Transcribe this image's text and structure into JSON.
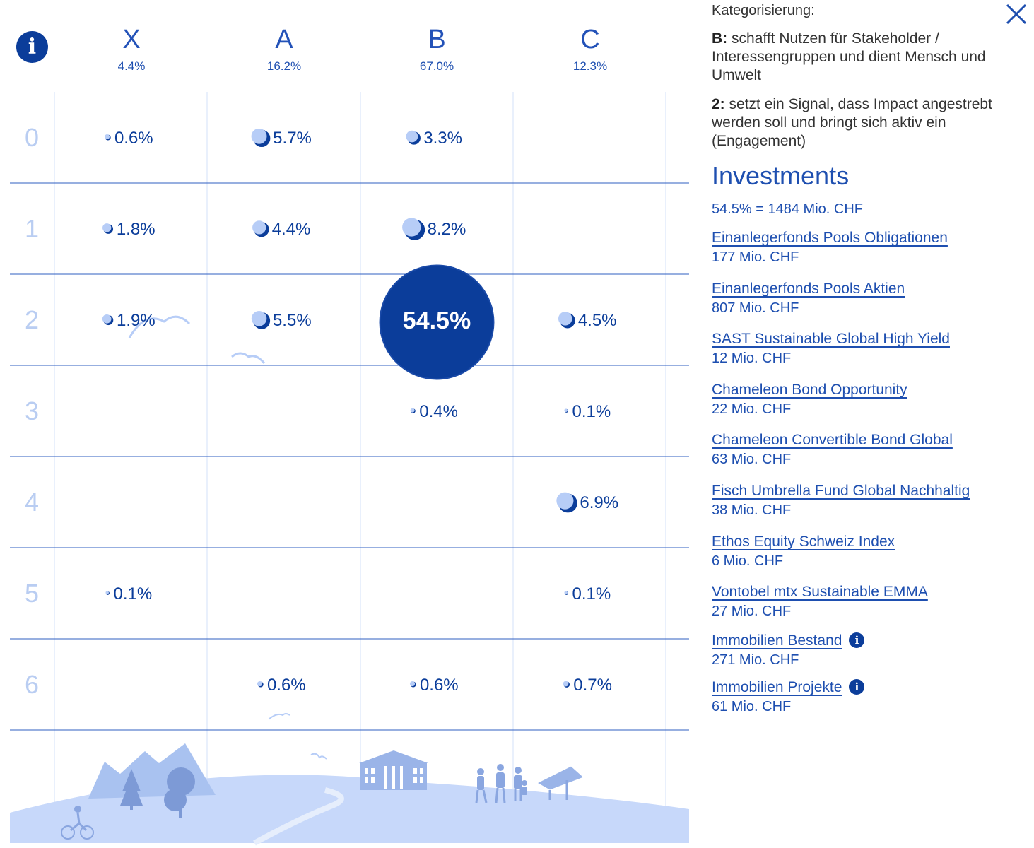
{
  "chart_data": {
    "type": "bubble-matrix",
    "columns": [
      {
        "label": "X",
        "total": "4.4%"
      },
      {
        "label": "A",
        "total": "16.2%"
      },
      {
        "label": "B",
        "total": "67.0%"
      },
      {
        "label": "C",
        "total": "12.3%"
      }
    ],
    "rows": [
      "0",
      "1",
      "2",
      "3",
      "4",
      "5",
      "6"
    ],
    "cells": [
      {
        "row": 0,
        "col": 0,
        "value": 0.6,
        "label": "0.6%"
      },
      {
        "row": 0,
        "col": 1,
        "value": 5.7,
        "label": "5.7%"
      },
      {
        "row": 0,
        "col": 2,
        "value": 3.3,
        "label": "3.3%"
      },
      {
        "row": 1,
        "col": 0,
        "value": 1.8,
        "label": "1.8%"
      },
      {
        "row": 1,
        "col": 1,
        "value": 4.4,
        "label": "4.4%"
      },
      {
        "row": 1,
        "col": 2,
        "value": 8.2,
        "label": "8.2%"
      },
      {
        "row": 2,
        "col": 0,
        "value": 1.9,
        "label": "1.9%"
      },
      {
        "row": 2,
        "col": 1,
        "value": 5.5,
        "label": "5.5%"
      },
      {
        "row": 2,
        "col": 2,
        "value": 54.5,
        "label": "54.5%",
        "selected": true
      },
      {
        "row": 2,
        "col": 3,
        "value": 4.5,
        "label": "4.5%"
      },
      {
        "row": 3,
        "col": 2,
        "value": 0.4,
        "label": "0.4%"
      },
      {
        "row": 3,
        "col": 3,
        "value": 0.1,
        "label": "0.1%"
      },
      {
        "row": 4,
        "col": 3,
        "value": 6.9,
        "label": "6.9%"
      },
      {
        "row": 5,
        "col": 0,
        "value": 0.1,
        "label": "0.1%"
      },
      {
        "row": 5,
        "col": 3,
        "value": 0.1,
        "label": "0.1%"
      },
      {
        "row": 6,
        "col": 1,
        "value": 0.6,
        "label": "0.6%"
      },
      {
        "row": 6,
        "col": 2,
        "value": 0.6,
        "label": "0.6%"
      },
      {
        "row": 6,
        "col": 3,
        "value": 0.7,
        "label": "0.7%"
      }
    ]
  },
  "panel": {
    "title": "Kategorisierung:",
    "desc1_key": "B:",
    "desc1_text": "schafft Nutzen für Stakeholder / Interessengruppen und dient Mensch und Umwelt",
    "desc2_key": "2:",
    "desc2_text": "setzt ein Signal, dass Impact angestrebt werden soll und bringt sich aktiv ein (Engagement)",
    "investments_title": "Investments",
    "investments_summary": "54.5% = 1484 Mio. CHF",
    "funds": [
      {
        "name": "Einanlegerfonds Pools Obligationen",
        "amount": "177 Mio. CHF"
      },
      {
        "name": "Einanlegerfonds Pools Aktien",
        "amount": "807 Mio. CHF"
      },
      {
        "name": "SAST Sustainable Global High Yield",
        "amount": "12 Mio. CHF"
      },
      {
        "name": "Chameleon Bond Opportunity",
        "amount": "22 Mio. CHF"
      },
      {
        "name": "Chameleon Convertible Bond Global",
        "amount": "63 Mio. CHF"
      },
      {
        "name": "Fisch Umbrella Fund Global Nachhaltig",
        "amount": "38 Mio. CHF"
      },
      {
        "name": "Ethos Equity Schweiz Index",
        "amount": "6 Mio. CHF"
      },
      {
        "name": "Vontobel mtx Sustainable EMMA",
        "amount": "27 Mio. CHF"
      },
      {
        "name": "Immobilien Bestand",
        "amount": "271 Mio. CHF",
        "info": true
      },
      {
        "name": "Immobilien Projekte",
        "amount": "61 Mio. CHF",
        "info": true
      }
    ]
  },
  "colors": {
    "accent": "#0b3d9a",
    "bubble_light": "#b7cdf7",
    "grid": "#d3e0f8",
    "row_label": "#b9cdf2",
    "landscape": "#c7d8fa"
  },
  "icons": [
    "info-icon",
    "close-icon",
    "landscape-illustration"
  ]
}
